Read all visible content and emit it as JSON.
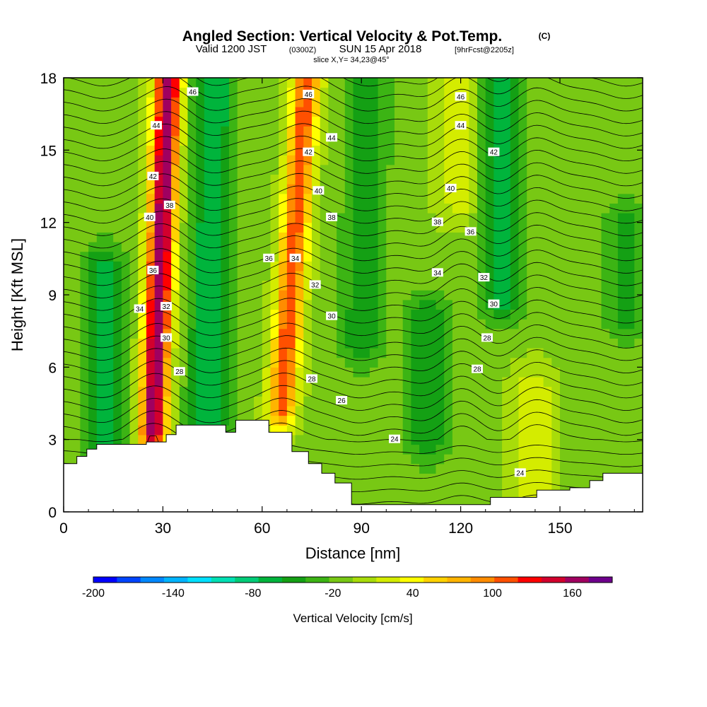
{
  "title": {
    "main": "Angled Section: Vertical Velocity & Pot.Temp.",
    "main_suffix": "(C)",
    "sub_valid": "Valid 1200 JST",
    "sub_utc": "(0300Z)",
    "sub_date": "SUN 15 Apr 2018",
    "sub_fcst": "[9hrFcst@2205z]",
    "slice": "slice X,Y= 34,23@45°"
  },
  "chart_data": {
    "type": "heatmap",
    "xlabel": "Distance [nm]",
    "ylabel": "Height [Kft MSL]",
    "xlim": [
      0,
      175
    ],
    "ylim": [
      0,
      18
    ],
    "x_ticks": [
      "0",
      "30",
      "60",
      "90",
      "120",
      "150"
    ],
    "x_tick_values": [
      0,
      30,
      60,
      90,
      120,
      150
    ],
    "y_ticks": [
      "0",
      "3",
      "6",
      "9",
      "12",
      "15",
      "18"
    ],
    "y_tick_values": [
      0,
      3,
      6,
      9,
      12,
      15,
      18
    ],
    "grid": false,
    "shaded_field": "Vertical Velocity [cm/s]",
    "colorbar": {
      "title": "Vertical Velocity [cm/s]",
      "tick_labels": [
        "-200",
        "-140",
        "-80",
        "-20",
        "40",
        "100",
        "160"
      ],
      "tick_values": [
        -200,
        -140,
        -80,
        -20,
        40,
        100,
        160
      ],
      "range": [
        -200,
        190
      ],
      "bins": 20,
      "colors": [
        "#0000ff",
        "#0044ff",
        "#0088ff",
        "#00b4ff",
        "#00e0ff",
        "#00e0b4",
        "#00cc78",
        "#00b43c",
        "#14a014",
        "#3cb414",
        "#78c814",
        "#a8dc0a",
        "#d4ec00",
        "#ffff00",
        "#ffd200",
        "#ffb400",
        "#ff8c00",
        "#ff5000",
        "#ff0000",
        "#d2002d",
        "#a00060",
        "#6e008c"
      ]
    },
    "vertical_velocity_features": [
      {
        "center_x": 27,
        "bottom_y": 3.5,
        "top_y": 18,
        "tilt_nm_per_kft": 0.32,
        "peak_cm_s": 180,
        "kind": "updraft"
      },
      {
        "center_x": 66,
        "bottom_y": 4.5,
        "top_y": 18,
        "tilt_nm_per_kft": 0.55,
        "peak_cm_s": 125,
        "kind": "updraft"
      },
      {
        "center_x": 44,
        "bottom_y": 4,
        "top_y": 18,
        "tilt_nm_per_kft": 0.1,
        "peak_cm_s": -65,
        "kind": "downdraft"
      },
      {
        "center_x": 90,
        "bottom_y": 7,
        "top_y": 18,
        "tilt_nm_per_kft": 0.2,
        "peak_cm_s": -45,
        "kind": "downdraft"
      },
      {
        "center_x": 110,
        "bottom_y": 3,
        "top_y": 8,
        "tilt_nm_per_kft": 0,
        "peak_cm_s": -45,
        "kind": "downdraft"
      },
      {
        "center_x": 132,
        "bottom_y": 9,
        "top_y": 18,
        "tilt_nm_per_kft": 0,
        "peak_cm_s": -60,
        "kind": "downdraft"
      },
      {
        "center_x": 12,
        "bottom_y": 2,
        "top_y": 10,
        "tilt_nm_per_kft": 0,
        "peak_cm_s": -55,
        "kind": "downdraft"
      },
      {
        "center_x": 142,
        "bottom_y": 1,
        "top_y": 5,
        "tilt_nm_per_kft": 0,
        "peak_cm_s": 35,
        "kind": "updraft"
      },
      {
        "center_x": 120,
        "bottom_y": 13,
        "top_y": 18,
        "tilt_nm_per_kft": 0,
        "peak_cm_s": 35,
        "kind": "updraft"
      },
      {
        "center_x": 170,
        "bottom_y": 8,
        "top_y": 12,
        "tilt_nm_per_kft": 0,
        "peak_cm_s": -35,
        "kind": "downdraft"
      }
    ],
    "terrain_profile": {
      "x": [
        0,
        4,
        4,
        7,
        7,
        10,
        10,
        13,
        13,
        25,
        25,
        28,
        28,
        31,
        31,
        34,
        34,
        39,
        39,
        49,
        49,
        52,
        52,
        57,
        57,
        62,
        62,
        69,
        69,
        74,
        74,
        78,
        78,
        82,
        82,
        87,
        87,
        97,
        97,
        113,
        113,
        129,
        129,
        143,
        143,
        146,
        146,
        153,
        153,
        159,
        159,
        163,
        163,
        175
      ],
      "height_kft": [
        2.0,
        2.0,
        2.3,
        2.3,
        2.6,
        2.6,
        2.8,
        2.8,
        2.8,
        2.8,
        2.9,
        2.9,
        2.9,
        2.9,
        3.2,
        3.2,
        3.6,
        3.6,
        3.6,
        3.6,
        3.3,
        3.3,
        3.8,
        3.8,
        3.8,
        3.8,
        3.3,
        3.3,
        2.5,
        2.5,
        2.0,
        2.0,
        1.6,
        1.6,
        1.2,
        1.2,
        0.3,
        0.3,
        0.3,
        0.3,
        0.3,
        0.3,
        0.6,
        0.6,
        0.9,
        0.9,
        0.9,
        0.9,
        1.0,
        1.0,
        1.3,
        1.3,
        1.6,
        1.6
      ]
    },
    "isentrope_levels": [
      24,
      26,
      28,
      30,
      32,
      34,
      36,
      38,
      40,
      42,
      44,
      46
    ],
    "isentrope_labels": [
      {
        "text": "46",
        "x": 39,
        "y": 17.4
      },
      {
        "text": "44",
        "x": 28,
        "y": 16.0
      },
      {
        "text": "42",
        "x": 27,
        "y": 13.9
      },
      {
        "text": "40",
        "x": 26,
        "y": 12.2
      },
      {
        "text": "38",
        "x": 32,
        "y": 12.7
      },
      {
        "text": "36",
        "x": 27,
        "y": 10.0
      },
      {
        "text": "34",
        "x": 23,
        "y": 8.4
      },
      {
        "text": "32",
        "x": 31,
        "y": 8.5
      },
      {
        "text": "30",
        "x": 31,
        "y": 7.2
      },
      {
        "text": "28",
        "x": 35,
        "y": 5.8
      },
      {
        "text": "46",
        "x": 74,
        "y": 17.3
      },
      {
        "text": "44",
        "x": 81,
        "y": 15.5
      },
      {
        "text": "42",
        "x": 74,
        "y": 14.9
      },
      {
        "text": "40",
        "x": 77,
        "y": 13.3
      },
      {
        "text": "38",
        "x": 81,
        "y": 12.2
      },
      {
        "text": "36",
        "x": 62,
        "y": 10.5
      },
      {
        "text": "34",
        "x": 70,
        "y": 10.5
      },
      {
        "text": "32",
        "x": 76,
        "y": 9.4
      },
      {
        "text": "30",
        "x": 81,
        "y": 8.1
      },
      {
        "text": "28",
        "x": 75,
        "y": 5.5
      },
      {
        "text": "26",
        "x": 84,
        "y": 4.6
      },
      {
        "text": "24",
        "x": 100,
        "y": 3.0
      },
      {
        "text": "46",
        "x": 120,
        "y": 17.2
      },
      {
        "text": "44",
        "x": 120,
        "y": 16.0
      },
      {
        "text": "42",
        "x": 130,
        "y": 14.9
      },
      {
        "text": "40",
        "x": 117,
        "y": 13.4
      },
      {
        "text": "38",
        "x": 113,
        "y": 12.0
      },
      {
        "text": "36",
        "x": 123,
        "y": 11.6
      },
      {
        "text": "34",
        "x": 113,
        "y": 9.9
      },
      {
        "text": "32",
        "x": 127,
        "y": 9.7
      },
      {
        "text": "30",
        "x": 130,
        "y": 8.6
      },
      {
        "text": "28",
        "x": 128,
        "y": 7.2
      },
      {
        "text": "28",
        "x": 125,
        "y": 5.9
      },
      {
        "text": "24",
        "x": 138,
        "y": 1.6
      }
    ]
  }
}
